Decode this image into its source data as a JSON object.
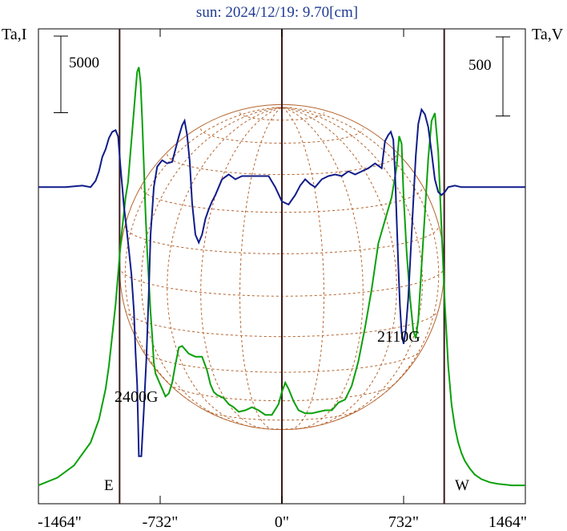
{
  "title": "sun: 2024/12/19: 9.70[cm]",
  "left_axis_label": "Ta,I",
  "right_axis_label": "Ta,V",
  "left_scale_label": "5000",
  "right_scale_label": "500",
  "east_label": "E",
  "west_label": "W",
  "annotations": [
    {
      "text": "2400G",
      "x": -1004
    },
    {
      "text": "2110G",
      "x": 732
    }
  ],
  "colors": {
    "stokes_I": "#0aa00a",
    "stokes_V": "#101c8a",
    "disk_grid": "#b5642e",
    "limb_lines": "#3a1a1a",
    "title": "#1f3a93"
  },
  "chart_data": {
    "type": "line",
    "title": "sun: 2024/12/19: 9.70[cm]",
    "xlabel": "",
    "ylabel": "Ta,I",
    "y2label": "Ta,V",
    "xlim": [
      -1464,
      1464
    ],
    "xticks": [
      -1464,
      -732,
      0,
      732,
      1464
    ],
    "xtick_labels": [
      "-1464\"",
      "-732\"",
      "0\"",
      "732\"",
      "1464\""
    ],
    "vertical_lines_x": [
      -976,
      0,
      976
    ],
    "solar_radius_arcsec": 976,
    "grid": false,
    "series": [
      {
        "key": "I",
        "axis": "left",
        "ylim": [
          -1000,
          30000
        ],
        "x": [
          -1464,
          -1350,
          -1250,
          -1150,
          -1100,
          -1060,
          -1040,
          -1020,
          -1000,
          -985,
          -970,
          -955,
          -940,
          -925,
          -910,
          -895,
          -880,
          -870,
          -860,
          -850,
          -840,
          -830,
          -820,
          -810,
          -800,
          -790,
          -780,
          -770,
          -760,
          -740,
          -720,
          -700,
          -680,
          -660,
          -640,
          -620,
          -600,
          -560,
          -520,
          -480,
          -450,
          -430,
          -410,
          -390,
          -370,
          -350,
          -320,
          -290,
          -260,
          -220,
          -180,
          -140,
          -100,
          -60,
          -20,
          0,
          20,
          40,
          70,
          100,
          140,
          180,
          220,
          260,
          300,
          340,
          380,
          420,
          460,
          500,
          540,
          580,
          620,
          660,
          690,
          705,
          720,
          732,
          750,
          770,
          790,
          805,
          820,
          840,
          860,
          880,
          900,
          920,
          940,
          960,
          980,
          1000,
          1020,
          1040,
          1060,
          1080,
          1100,
          1130,
          1160,
          1200,
          1250,
          1300,
          1380,
          1464
        ],
        "y": [
          200,
          700,
          1500,
          3000,
          4500,
          6500,
          8000,
          10000,
          12000,
          14000,
          16000,
          17500,
          19000,
          20000,
          22000,
          24000,
          26000,
          27200,
          27500,
          26500,
          24000,
          21000,
          18000,
          15500,
          13500,
          11500,
          10000,
          8200,
          7500,
          7000,
          6500,
          6000,
          6200,
          6900,
          8100,
          9200,
          9300,
          8800,
          8600,
          8600,
          7700,
          6800,
          6300,
          6100,
          6000,
          5900,
          5500,
          5300,
          5000,
          5100,
          5300,
          5100,
          4800,
          4800,
          5500,
          6300,
          6900,
          6500,
          5700,
          5100,
          4900,
          4900,
          5000,
          5100,
          5100,
          5600,
          5800,
          6700,
          8300,
          10500,
          13000,
          16000,
          17500,
          19000,
          21000,
          23000,
          22500,
          19000,
          15500,
          12500,
          10300,
          9800,
          11000,
          14500,
          18000,
          21500,
          24000,
          24500,
          22000,
          17000,
          12000,
          8000,
          5500,
          4000,
          3000,
          2300,
          1800,
          1300,
          900,
          600,
          400,
          300,
          200,
          200
        ]
      },
      {
        "key": "V",
        "axis": "right",
        "ylim": [
          -2000,
          1000
        ],
        "x": [
          -1464,
          -1300,
          -1200,
          -1150,
          -1120,
          -1100,
          -1080,
          -1060,
          -1040,
          -1020,
          -1000,
          -985,
          -970,
          -960,
          -950,
          -935,
          -920,
          -905,
          -890,
          -880,
          -870,
          -860,
          -845,
          -830,
          -815,
          -800,
          -790,
          -770,
          -750,
          -720,
          -690,
          -660,
          -640,
          -620,
          -600,
          -585,
          -570,
          -555,
          -540,
          -520,
          -500,
          -480,
          -460,
          -440,
          -420,
          -400,
          -380,
          -360,
          -320,
          -280,
          -240,
          -200,
          -160,
          -120,
          -80,
          -40,
          0,
          40,
          80,
          110,
          140,
          170,
          200,
          240,
          280,
          320,
          360,
          400,
          440,
          480,
          520,
          560,
          600,
          620,
          640,
          655,
          670,
          680,
          690,
          700,
          710,
          720,
          732,
          745,
          760,
          775,
          790,
          805,
          820,
          840,
          860,
          880,
          900,
          920,
          940,
          960,
          980,
          1000,
          1040,
          1080,
          1120,
          1160,
          1200,
          1300,
          1464
        ],
        "y": [
          0,
          0,
          10,
          0,
          40,
          100,
          190,
          240,
          310,
          350,
          360,
          320,
          120,
          0,
          -120,
          -250,
          -400,
          -550,
          -780,
          -1050,
          -1250,
          -1700,
          -1700,
          -1400,
          -1080,
          -650,
          -300,
          0,
          130,
          170,
          150,
          160,
          240,
          320,
          390,
          420,
          330,
          170,
          -100,
          -300,
          -350,
          -300,
          -200,
          -140,
          -90,
          -50,
          0,
          50,
          80,
          50,
          70,
          70,
          70,
          70,
          70,
          0,
          -90,
          -110,
          -50,
          10,
          50,
          20,
          0,
          50,
          70,
          80,
          70,
          100,
          80,
          100,
          120,
          150,
          120,
          290,
          330,
          350,
          300,
          100,
          -200,
          -500,
          -750,
          -920,
          -990,
          -900,
          -700,
          -400,
          -100,
          200,
          400,
          490,
          460,
          380,
          220,
          50,
          -30,
          -50,
          -30,
          0,
          10,
          0,
          0,
          0,
          0,
          0,
          0
        ]
      }
    ],
    "annotations": [
      {
        "text": "2400G",
        "x": -1004
      },
      {
        "text": "2110G",
        "x": 732
      }
    ],
    "scale_bars": [
      {
        "axis": "left",
        "value": 5000,
        "label": "5000"
      },
      {
        "axis": "right",
        "value": 500,
        "label": "500"
      }
    ]
  }
}
